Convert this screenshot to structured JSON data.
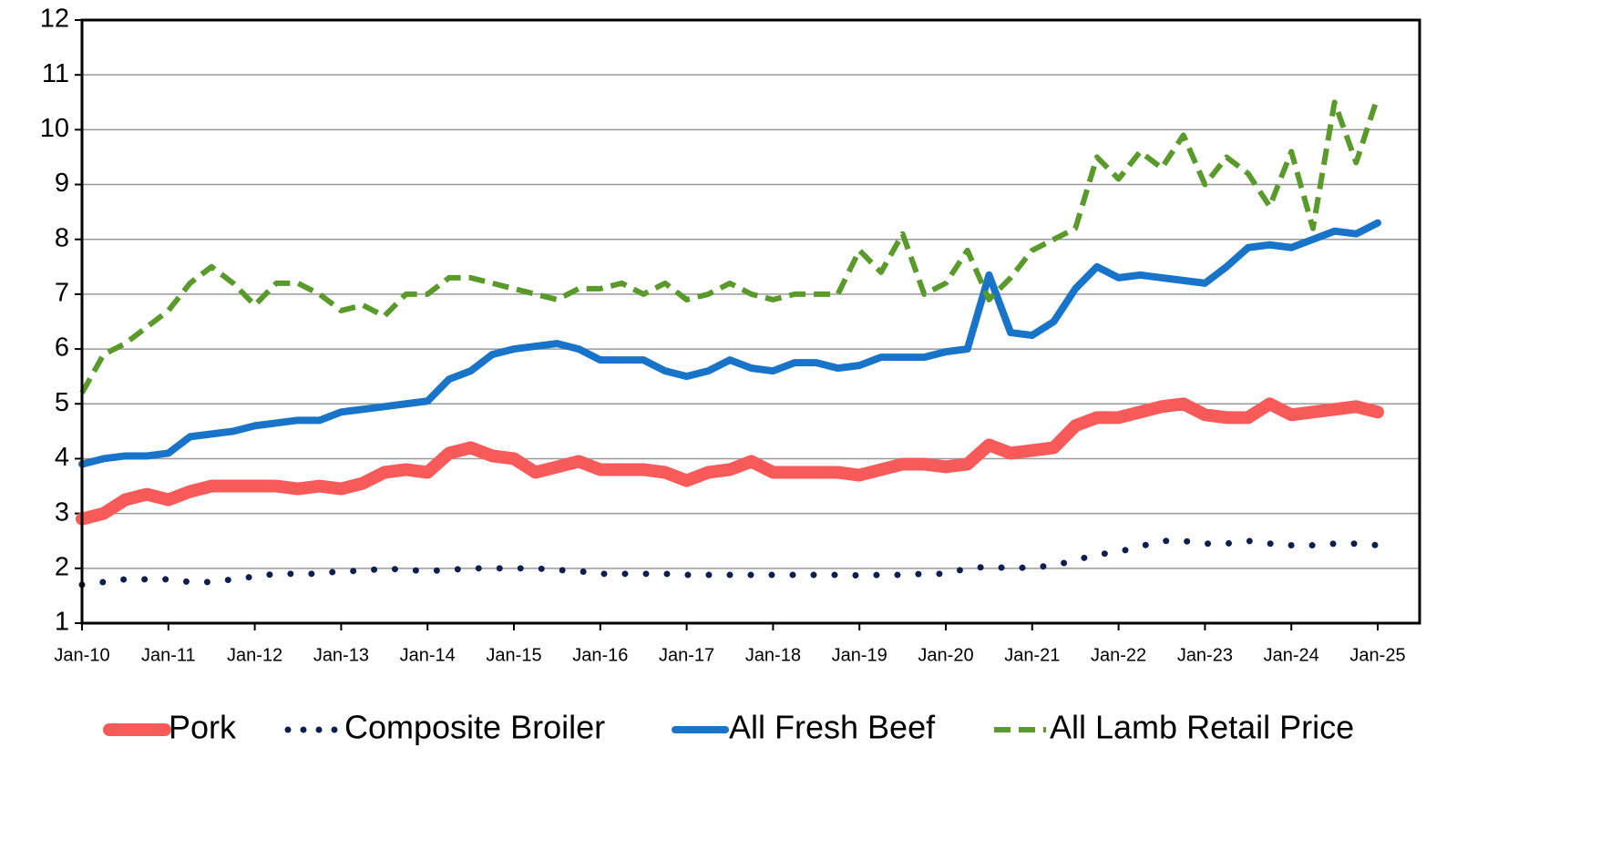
{
  "chart_data": {
    "type": "line",
    "categories": [
      "Jan-10",
      null,
      null,
      null,
      "Jan-11",
      null,
      null,
      null,
      "Jan-12",
      null,
      null,
      null,
      "Jan-13",
      null,
      null,
      null,
      "Jan-14",
      null,
      null,
      null,
      "Jan-15",
      null,
      null,
      null,
      "Jan-16",
      null,
      null,
      null,
      "Jan-17",
      null,
      null,
      null,
      "Jan-18",
      null,
      null,
      null,
      "Jan-19",
      null,
      null,
      null,
      "Jan-20",
      null,
      null,
      null,
      "Jan-21",
      null,
      null,
      null,
      "Jan-22",
      null,
      null,
      null,
      "Jan-23",
      null,
      null,
      null,
      "Jan-24",
      null,
      null,
      null,
      "Jan-25"
    ],
    "series": [
      {
        "name": "Pork",
        "color": "#f85a5a",
        "style": "solid",
        "values": [
          2.9,
          3.0,
          3.25,
          3.35,
          3.25,
          3.4,
          3.5,
          3.5,
          3.5,
          3.5,
          3.45,
          3.5,
          3.45,
          3.55,
          3.75,
          3.8,
          3.75,
          4.1,
          4.2,
          4.05,
          4.0,
          3.75,
          3.85,
          3.95,
          3.8,
          3.8,
          3.8,
          3.75,
          3.6,
          3.75,
          3.8,
          3.95,
          3.75,
          3.75,
          3.75,
          3.75,
          3.7,
          3.8,
          3.9,
          3.9,
          3.85,
          3.9,
          4.25,
          4.1,
          4.15,
          4.2,
          4.6,
          4.75,
          4.75,
          4.85,
          4.95,
          5.0,
          4.8,
          4.75,
          4.75,
          5.0,
          4.8,
          4.85,
          4.9,
          4.95,
          4.85
        ]
      },
      {
        "name": "Composite Broiler",
        "color": "#0d1f4f",
        "style": "dotted",
        "values": [
          1.7,
          1.75,
          1.8,
          1.8,
          1.8,
          1.75,
          1.75,
          1.8,
          1.85,
          1.9,
          1.9,
          1.9,
          1.95,
          1.95,
          2.0,
          1.97,
          1.95,
          1.97,
          2.0,
          2.0,
          2.0,
          2.0,
          1.97,
          1.95,
          1.9,
          1.9,
          1.9,
          1.9,
          1.88,
          1.88,
          1.88,
          1.88,
          1.88,
          1.88,
          1.88,
          1.88,
          1.87,
          1.88,
          1.88,
          1.9,
          1.9,
          2.0,
          2.03,
          2.0,
          2.02,
          2.05,
          2.15,
          2.25,
          2.3,
          2.4,
          2.5,
          2.5,
          2.45,
          2.45,
          2.5,
          2.45,
          2.42,
          2.42,
          2.45,
          2.45,
          2.42
        ]
      },
      {
        "name": "All Fresh Beef",
        "color": "#1874c8",
        "style": "solid",
        "values": [
          3.9,
          4.0,
          4.05,
          4.05,
          4.1,
          4.4,
          4.45,
          4.5,
          4.6,
          4.65,
          4.7,
          4.7,
          4.85,
          4.9,
          4.95,
          5.0,
          5.05,
          5.45,
          5.6,
          5.9,
          6.0,
          6.05,
          6.1,
          6.0,
          5.8,
          5.8,
          5.8,
          5.6,
          5.5,
          5.6,
          5.8,
          5.65,
          5.6,
          5.75,
          5.75,
          5.65,
          5.7,
          5.85,
          5.85,
          5.85,
          5.95,
          6.0,
          7.35,
          6.3,
          6.25,
          6.5,
          7.1,
          7.5,
          7.3,
          7.35,
          7.3,
          7.25,
          7.2,
          7.5,
          7.85,
          7.9,
          7.85,
          8.0,
          8.15,
          8.1,
          8.3
        ]
      },
      {
        "name": "All Lamb Retail Price",
        "color": "#5a9a2a",
        "style": "dashed",
        "values": [
          5.2,
          5.9,
          6.1,
          6.4,
          6.7,
          7.2,
          7.5,
          7.2,
          6.8,
          7.2,
          7.2,
          7.0,
          6.7,
          6.8,
          6.6,
          7.0,
          7.0,
          7.3,
          7.3,
          7.2,
          7.1,
          7.0,
          6.9,
          7.1,
          7.1,
          7.2,
          7.0,
          7.2,
          6.9,
          7.0,
          7.2,
          7.0,
          6.9,
          7.0,
          7.0,
          7.0,
          7.8,
          7.4,
          8.1,
          7.0,
          7.2,
          7.8,
          6.9,
          7.3,
          7.8,
          8.0,
          8.2,
          9.5,
          9.1,
          9.6,
          9.3,
          9.9,
          9.0,
          9.5,
          9.2,
          8.6,
          9.6,
          8.2,
          10.5,
          9.4,
          10.6
        ]
      }
    ],
    "ylim": [
      1,
      12
    ],
    "yticks": [
      1,
      2,
      3,
      4,
      5,
      6,
      7,
      8,
      9,
      10,
      11,
      12
    ],
    "grid": true,
    "legend": "bottom"
  }
}
